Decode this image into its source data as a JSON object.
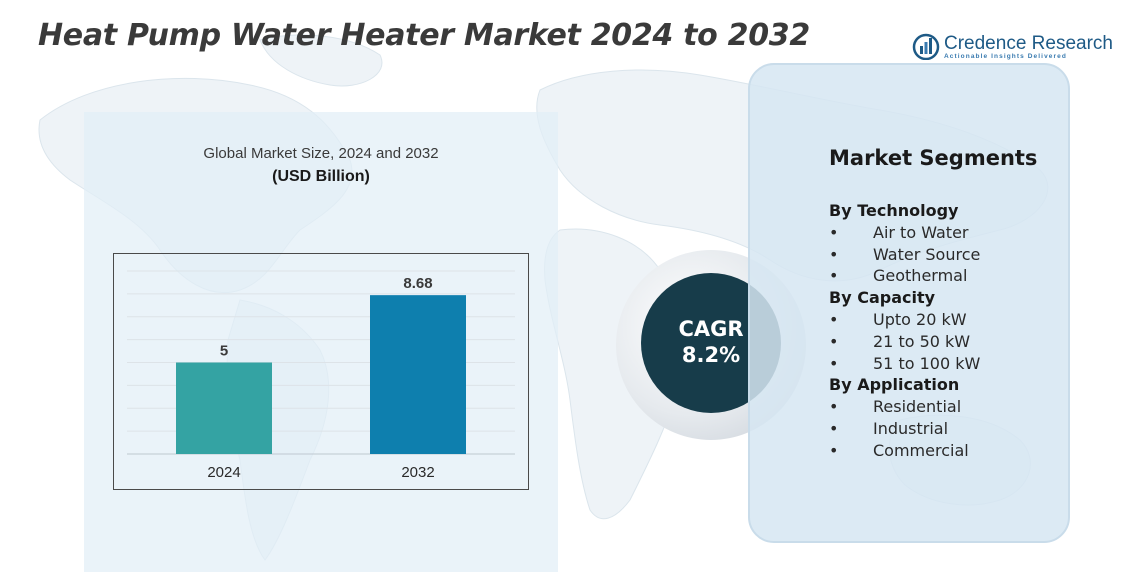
{
  "title": "Heat Pump Water Heater Market 2024 to 2032",
  "brand": {
    "name": "Credence Research",
    "tagline": "Actionable Insights Delivered",
    "logo_icon": "bar-chart-logo-icon",
    "color": "#1e5a86"
  },
  "chart_data": {
    "type": "bar",
    "title": "Global Market Size, 2024 and 2032",
    "unit": "(USD Billion)",
    "categories": [
      "2024",
      "2032"
    ],
    "values": [
      5,
      8.68
    ],
    "value_labels": [
      "5",
      "8.68"
    ],
    "bar_colors": [
      "#34a3a3",
      "#0e7fae"
    ],
    "ylim": [
      0,
      10
    ],
    "grid": true,
    "legend": "none"
  },
  "cagr": {
    "label": "CAGR",
    "value": "8.2%",
    "color": "#173c4a"
  },
  "segments": {
    "title": "Market Segments",
    "groups": [
      {
        "label": "By Technology",
        "items": [
          "Air to Water",
          "Water Source",
          "Geothermal"
        ]
      },
      {
        "label": "By Capacity",
        "items": [
          "Upto 20 kW",
          "21 to 50 kW",
          "51 to 100 kW"
        ]
      },
      {
        "label": "By Application",
        "items": [
          "Residential",
          "Industrial",
          "Commercial"
        ]
      }
    ]
  }
}
